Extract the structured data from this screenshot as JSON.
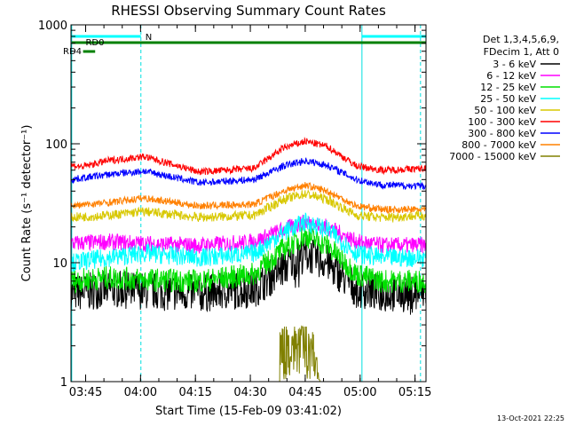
{
  "chart_data": {
    "type": "line",
    "title": "RHESSI Observing Summary Count Rates",
    "xlabel": "Start Time (15-Feb-09 03:41:02)",
    "ylabel": "Count Rate (s⁻¹ detector⁻¹)",
    "yscale": "log",
    "ylim": [
      1,
      1000
    ],
    "xlim_minutes_after_0341": [
      0,
      97
    ],
    "x_ticks": [
      {
        "label": "03:45",
        "minute": 4
      },
      {
        "label": "04:00",
        "minute": 19
      },
      {
        "label": "04:15",
        "minute": 34
      },
      {
        "label": "04:30",
        "minute": 49
      },
      {
        "label": "04:45",
        "minute": 64
      },
      {
        "label": "05:00",
        "minute": 79
      },
      {
        "label": "05:15",
        "minute": 94
      }
    ],
    "y_ticks": [
      {
        "label": "1",
        "value": 1
      },
      {
        "label": "10",
        "value": 10
      },
      {
        "label": "100",
        "value": 100
      },
      {
        "label": "1000",
        "value": 1000
      }
    ],
    "legend_header": [
      "Det 1,3,4,5,6,9,",
      "FDecim 1, Att 0"
    ],
    "legend_position": "right",
    "series": [
      {
        "name": "3 - 6 keV",
        "color": "#000000",
        "points": [
          [
            0,
            5.5
          ],
          [
            10,
            6
          ],
          [
            20,
            5.8
          ],
          [
            35,
            5.5
          ],
          [
            50,
            6
          ],
          [
            58,
            9
          ],
          [
            64,
            12
          ],
          [
            70,
            10
          ],
          [
            78,
            6
          ],
          [
            85,
            5.5
          ],
          [
            97,
            5.5
          ]
        ]
      },
      {
        "name": "6 - 12 keV",
        "color": "#ff00ff",
        "points": [
          [
            0,
            14.5
          ],
          [
            10,
            15
          ],
          [
            20,
            14.5
          ],
          [
            35,
            14
          ],
          [
            50,
            15
          ],
          [
            58,
            19
          ],
          [
            64,
            22
          ],
          [
            70,
            20
          ],
          [
            78,
            15
          ],
          [
            85,
            14
          ],
          [
            97,
            14
          ]
        ]
      },
      {
        "name": "12 - 25 keV",
        "color": "#00e000",
        "points": [
          [
            0,
            7
          ],
          [
            10,
            7.5
          ],
          [
            20,
            7.2
          ],
          [
            35,
            7
          ],
          [
            50,
            8
          ],
          [
            58,
            13
          ],
          [
            64,
            17
          ],
          [
            70,
            14
          ],
          [
            78,
            8
          ],
          [
            85,
            7
          ],
          [
            97,
            7
          ]
        ]
      },
      {
        "name": "25 - 50 keV",
        "color": "#00ffff",
        "points": [
          [
            0,
            10
          ],
          [
            10,
            11
          ],
          [
            20,
            12
          ],
          [
            35,
            11
          ],
          [
            50,
            12
          ],
          [
            58,
            18
          ],
          [
            64,
            22
          ],
          [
            70,
            19
          ],
          [
            78,
            12
          ],
          [
            85,
            11
          ],
          [
            97,
            11
          ]
        ]
      },
      {
        "name": "50 - 100 keV",
        "color": "#d8c800",
        "points": [
          [
            0,
            24
          ],
          [
            10,
            25
          ],
          [
            20,
            27
          ],
          [
            35,
            24
          ],
          [
            50,
            25
          ],
          [
            58,
            34
          ],
          [
            64,
            38
          ],
          [
            70,
            34
          ],
          [
            78,
            25
          ],
          [
            85,
            24
          ],
          [
            97,
            25
          ]
        ]
      },
      {
        "name": "100 - 300 keV",
        "color": "#ff0000",
        "points": [
          [
            0,
            66
          ],
          [
            3,
            64
          ],
          [
            10,
            72
          ],
          [
            20,
            78
          ],
          [
            35,
            58
          ],
          [
            50,
            62
          ],
          [
            58,
            92
          ],
          [
            64,
            105
          ],
          [
            70,
            95
          ],
          [
            78,
            65
          ],
          [
            85,
            60
          ],
          [
            97,
            62
          ]
        ]
      },
      {
        "name": "300 - 800 keV",
        "color": "#0000ff",
        "points": [
          [
            0,
            50
          ],
          [
            10,
            55
          ],
          [
            20,
            59
          ],
          [
            35,
            47
          ],
          [
            50,
            50
          ],
          [
            58,
            65
          ],
          [
            64,
            72
          ],
          [
            70,
            66
          ],
          [
            78,
            50
          ],
          [
            85,
            45
          ],
          [
            97,
            44
          ]
        ]
      },
      {
        "name": "800 - 7000 keV",
        "color": "#ff8000",
        "points": [
          [
            0,
            30
          ],
          [
            10,
            32
          ],
          [
            20,
            35
          ],
          [
            35,
            30
          ],
          [
            50,
            31
          ],
          [
            58,
            40
          ],
          [
            64,
            45
          ],
          [
            70,
            40
          ],
          [
            78,
            30
          ],
          [
            85,
            28
          ],
          [
            97,
            28
          ]
        ]
      },
      {
        "name": "7000 - 15000 keV",
        "color": "#808000",
        "points": [
          [
            0,
            1
          ],
          [
            57,
            1
          ],
          [
            57,
            2.4
          ],
          [
            63,
            2.6
          ],
          [
            66,
            2.4
          ],
          [
            68,
            1
          ],
          [
            97,
            1
          ]
        ]
      }
    ],
    "annotations": {
      "night_label": "N",
      "saa_label": "RD0",
      "saa2_label": "RD4"
    },
    "footer_date": "13-Oct-2021 22:25"
  }
}
